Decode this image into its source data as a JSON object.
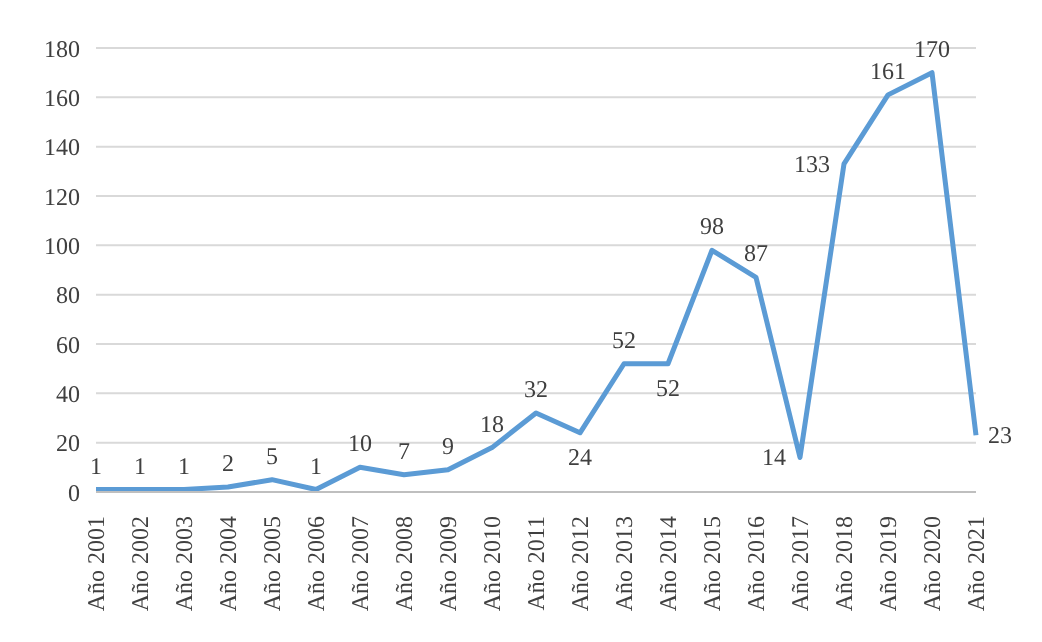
{
  "chart_data": {
    "type": "line",
    "categories": [
      "Año 2001",
      "Año 2002",
      "Año 2003",
      "Año 2004",
      "Año 2005",
      "Año 2006",
      "Año 2007",
      "Año 2008",
      "Año 2009",
      "Año 2010",
      "Año 2011",
      "Año 2012",
      "Año 2013",
      "Año 2014",
      "Año 2015",
      "Año 2016",
      "Año 2017",
      "Año 2018",
      "Año 2019",
      "Año 2020",
      "Año 2021"
    ],
    "series": [
      {
        "color": "#5b9bd5",
        "values": [
          1,
          1,
          1,
          2,
          5,
          1,
          10,
          7,
          9,
          18,
          32,
          24,
          52,
          52,
          98,
          87,
          14,
          133,
          161,
          170,
          23
        ]
      }
    ],
    "ylim": [
      0,
      180
    ],
    "yticks": [
      0,
      20,
      40,
      60,
      80,
      100,
      120,
      140,
      160,
      180
    ],
    "grid": "y",
    "data_labels": true,
    "marker": "none",
    "line_style": "solid",
    "legend": false
  }
}
